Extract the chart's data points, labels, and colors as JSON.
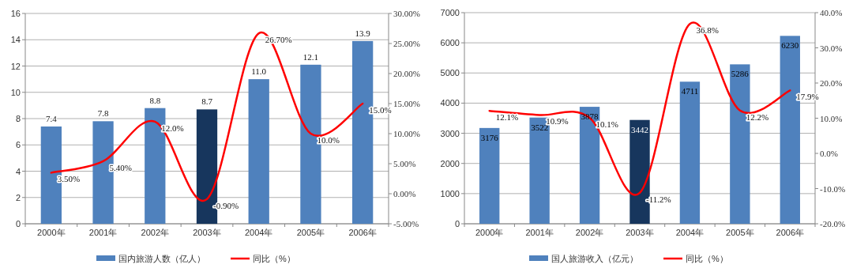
{
  "chart_data": [
    {
      "type": "bar",
      "categories": [
        "2000年",
        "2001年",
        "2002年",
        "2003年",
        "2004年",
        "2005年",
        "2006年"
      ],
      "series": [
        {
          "name": "国内旅游人数（亿人）",
          "color": "#4f81bd",
          "colors": [
            "#4f81bd",
            "#4f81bd",
            "#4f81bd",
            "#17365d",
            "#4f81bd",
            "#4f81bd",
            "#4f81bd"
          ],
          "values": [
            7.4,
            7.8,
            8.8,
            8.7,
            11.0,
            12.1,
            13.9
          ],
          "value_labels": [
            "7.4",
            "7.8",
            "8.8",
            "8.7",
            "11.0",
            "12.1",
            "13.9"
          ]
        },
        {
          "name": "同比（%）",
          "type": "line",
          "axis": "y2",
          "color": "#ff0000",
          "values": [
            3.5,
            5.4,
            12.0,
            -0.9,
            26.7,
            10.0,
            15.0
          ],
          "value_labels": [
            "3.50%",
            "5.40%",
            "12.0%",
            "-0.90%",
            "26.70%",
            "10.0%",
            "15.0%"
          ]
        }
      ],
      "ylim": [
        0,
        16
      ],
      "yticks": [
        0,
        2,
        4,
        6,
        8,
        10,
        12,
        14,
        16
      ],
      "y2lim": [
        -5,
        30
      ],
      "y2ticks": [
        {
          "value": -5,
          "label": "-5.00%"
        },
        {
          "value": 0,
          "label": "0.00%"
        },
        {
          "value": 5,
          "label": "5.00%"
        },
        {
          "value": 10,
          "label": "10.00%"
        },
        {
          "value": 15,
          "label": "15.00%"
        },
        {
          "value": 20,
          "label": "20.00%"
        },
        {
          "value": 25,
          "label": "25.00%"
        },
        {
          "value": 30,
          "label": "30.00%"
        }
      ],
      "grid": "y",
      "legend": "bottom"
    },
    {
      "type": "bar",
      "categories": [
        "2000年",
        "2001年",
        "2002年",
        "2003年",
        "2004年",
        "2005年",
        "2006年"
      ],
      "series": [
        {
          "name": "国人旅游收入（亿元）",
          "color": "#4f81bd",
          "colors": [
            "#4f81bd",
            "#4f81bd",
            "#4f81bd",
            "#17365d",
            "#4f81bd",
            "#4f81bd",
            "#4f81bd"
          ],
          "values": [
            3176,
            3522,
            3878,
            3442,
            4711,
            5286,
            6230
          ],
          "value_labels": [
            "3176",
            "3522",
            "3878",
            "3442",
            "4711",
            "5286",
            "6230"
          ]
        },
        {
          "name": "同比（%）",
          "type": "line",
          "axis": "y2",
          "color": "#ff0000",
          "values": [
            12.1,
            10.9,
            10.1,
            -11.2,
            36.8,
            12.2,
            17.9
          ],
          "value_labels": [
            "12.1%",
            "10.9%",
            "10.1%",
            "-11.2%",
            "36.8%",
            "12.2%",
            "17.9%"
          ]
        }
      ],
      "ylim": [
        0,
        7000
      ],
      "yticks": [
        0,
        1000,
        2000,
        3000,
        4000,
        5000,
        6000,
        7000
      ],
      "y2lim": [
        -20,
        40
      ],
      "y2ticks": [
        {
          "value": -20,
          "label": "-20.0%"
        },
        {
          "value": -10,
          "label": "-10.0%"
        },
        {
          "value": 0,
          "label": "0.0%"
        },
        {
          "value": 10,
          "label": "10.0%"
        },
        {
          "value": 20,
          "label": "20.0%"
        },
        {
          "value": 30,
          "label": "30.0%"
        },
        {
          "value": 40,
          "label": "40.0%"
        }
      ],
      "grid": "y",
      "legend": "bottom"
    }
  ]
}
